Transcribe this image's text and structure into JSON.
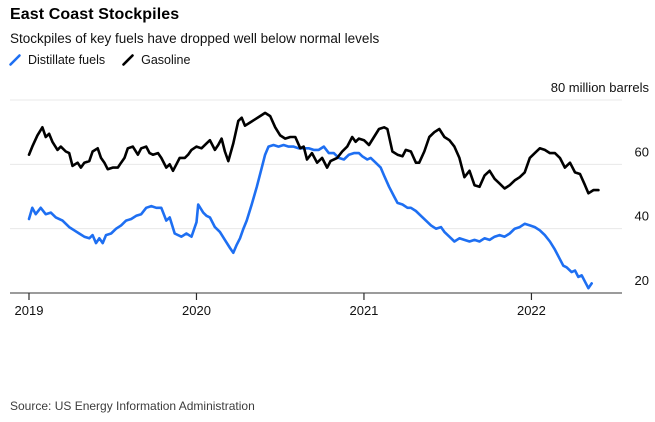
{
  "header": {
    "title": "East Coast Stockpiles",
    "subtitle": "Stockpiles of key fuels have dropped well below normal levels"
  },
  "legend": [
    {
      "label": "Distillate fuels",
      "color": "#1e6ff2"
    },
    {
      "label": "Gasoline",
      "color": "#000000"
    }
  ],
  "source": "Source: US Energy Information Administration",
  "colors": {
    "distillate": "#1e6ff2",
    "gasoline": "#000000",
    "gridline": "#e8e8e8",
    "axis": "#9b9b9b",
    "tick": "#2b2b2b",
    "label": "#111111"
  },
  "chart_data": {
    "type": "line",
    "title": "East Coast Stockpiles",
    "subtitle": "Stockpiles of key fuels have dropped well below normal levels",
    "unit_label": {
      "text": "80 million barrels",
      "value": 80
    },
    "xlim": [
      2018.8866,
      2022.5407
    ],
    "ylim": [
      20,
      80
    ],
    "grid": true,
    "legend_position": "top-left",
    "x_ticks": [
      {
        "value": 2019,
        "label": "2019"
      },
      {
        "value": 2020,
        "label": "2020"
      },
      {
        "value": 2021,
        "label": "2021"
      },
      {
        "value": 2022,
        "label": "2022"
      }
    ],
    "y_gridlines": [
      40,
      60,
      80
    ],
    "y_tick_labels": [
      {
        "value": 60,
        "label": "60"
      },
      {
        "value": 40,
        "label": "40"
      },
      {
        "value": 20,
        "label": "20"
      }
    ],
    "ylabel": "million barrels",
    "xlabel": "",
    "series": [
      {
        "name": "Distillate fuels",
        "color": "#1e6ff2",
        "points": [
          [
            2019.0,
            43
          ],
          [
            2019.02,
            46.5
          ],
          [
            2019.04,
            44.5
          ],
          [
            2019.07,
            46.5
          ],
          [
            2019.1,
            44.5
          ],
          [
            2019.13,
            45
          ],
          [
            2019.16,
            43.5
          ],
          [
            2019.2,
            42.5
          ],
          [
            2019.24,
            40.5
          ],
          [
            2019.27,
            39.5
          ],
          [
            2019.3,
            38.5
          ],
          [
            2019.33,
            37.5
          ],
          [
            2019.36,
            37
          ],
          [
            2019.38,
            38
          ],
          [
            2019.4,
            35.5
          ],
          [
            2019.42,
            37
          ],
          [
            2019.44,
            35.5
          ],
          [
            2019.46,
            38
          ],
          [
            2019.49,
            38.5
          ],
          [
            2019.52,
            40
          ],
          [
            2019.55,
            41
          ],
          [
            2019.58,
            42.5
          ],
          [
            2019.61,
            43
          ],
          [
            2019.64,
            44
          ],
          [
            2019.67,
            44.5
          ],
          [
            2019.7,
            46.5
          ],
          [
            2019.73,
            47
          ],
          [
            2019.76,
            46.5
          ],
          [
            2019.79,
            46.5
          ],
          [
            2019.82,
            42.5
          ],
          [
            2019.84,
            43.5
          ],
          [
            2019.87,
            38.5
          ],
          [
            2019.91,
            37.5
          ],
          [
            2019.94,
            38.5
          ],
          [
            2019.97,
            37.5
          ],
          [
            2020.0,
            42
          ],
          [
            2020.01,
            47.5
          ],
          [
            2020.04,
            45
          ],
          [
            2020.06,
            44
          ],
          [
            2020.08,
            43.5
          ],
          [
            2020.11,
            40.5
          ],
          [
            2020.14,
            39
          ],
          [
            2020.17,
            36.5
          ],
          [
            2020.2,
            34
          ],
          [
            2020.22,
            32.5
          ],
          [
            2020.24,
            35
          ],
          [
            2020.26,
            37
          ],
          [
            2020.28,
            40
          ],
          [
            2020.3,
            42.5
          ],
          [
            2020.33,
            47.5
          ],
          [
            2020.36,
            53
          ],
          [
            2020.39,
            59
          ],
          [
            2020.41,
            63
          ],
          [
            2020.43,
            65.5
          ],
          [
            2020.46,
            66
          ],
          [
            2020.49,
            65.5
          ],
          [
            2020.52,
            66
          ],
          [
            2020.55,
            65.5
          ],
          [
            2020.58,
            65.5
          ],
          [
            2020.61,
            65
          ],
          [
            2020.64,
            65
          ],
          [
            2020.67,
            65
          ],
          [
            2020.7,
            64.5
          ],
          [
            2020.73,
            64.5
          ],
          [
            2020.76,
            65.5
          ],
          [
            2020.79,
            63.5
          ],
          [
            2020.82,
            63.5
          ],
          [
            2020.85,
            62
          ],
          [
            2020.88,
            61.5
          ],
          [
            2020.91,
            63
          ],
          [
            2020.94,
            63.5
          ],
          [
            2020.97,
            63.5
          ],
          [
            2020.99,
            62.5
          ],
          [
            2021.02,
            61.5
          ],
          [
            2021.04,
            62
          ],
          [
            2021.07,
            60.5
          ],
          [
            2021.1,
            59
          ],
          [
            2021.12,
            56.5
          ],
          [
            2021.15,
            53
          ],
          [
            2021.18,
            50
          ],
          [
            2021.2,
            48
          ],
          [
            2021.23,
            47.5
          ],
          [
            2021.26,
            46.5
          ],
          [
            2021.28,
            46.5
          ],
          [
            2021.31,
            45.5
          ],
          [
            2021.34,
            44
          ],
          [
            2021.37,
            42.5
          ],
          [
            2021.4,
            41
          ],
          [
            2021.43,
            40
          ],
          [
            2021.46,
            40.5
          ],
          [
            2021.48,
            39
          ],
          [
            2021.51,
            37.5
          ],
          [
            2021.54,
            36
          ],
          [
            2021.57,
            37
          ],
          [
            2021.6,
            36.5
          ],
          [
            2021.63,
            36
          ],
          [
            2021.66,
            36.5
          ],
          [
            2021.69,
            36
          ],
          [
            2021.72,
            37
          ],
          [
            2021.75,
            36.5
          ],
          [
            2021.78,
            37.5
          ],
          [
            2021.81,
            38
          ],
          [
            2021.84,
            37.5
          ],
          [
            2021.87,
            38.5
          ],
          [
            2021.9,
            40
          ],
          [
            2021.93,
            40.5
          ],
          [
            2021.96,
            41.5
          ],
          [
            2021.99,
            41
          ],
          [
            2022.02,
            40.5
          ],
          [
            2022.05,
            39.5
          ],
          [
            2022.08,
            38
          ],
          [
            2022.11,
            36
          ],
          [
            2022.14,
            33.5
          ],
          [
            2022.17,
            30.5
          ],
          [
            2022.19,
            28.5
          ],
          [
            2022.21,
            28
          ],
          [
            2022.24,
            26.5
          ],
          [
            2022.26,
            27
          ],
          [
            2022.28,
            25
          ],
          [
            2022.3,
            25.5
          ],
          [
            2022.32,
            23.5
          ],
          [
            2022.34,
            21.5
          ],
          [
            2022.36,
            23
          ]
        ]
      },
      {
        "name": "Gasoline",
        "color": "#000000",
        "points": [
          [
            2019.0,
            63
          ],
          [
            2019.02,
            65.5
          ],
          [
            2019.05,
            69
          ],
          [
            2019.08,
            71.5
          ],
          [
            2019.1,
            68.5
          ],
          [
            2019.12,
            69.5
          ],
          [
            2019.14,
            67
          ],
          [
            2019.17,
            64.5
          ],
          [
            2019.19,
            65.5
          ],
          [
            2019.22,
            64
          ],
          [
            2019.24,
            63.5
          ],
          [
            2019.26,
            59.5
          ],
          [
            2019.29,
            60.5
          ],
          [
            2019.31,
            59
          ],
          [
            2019.33,
            60.5
          ],
          [
            2019.36,
            61
          ],
          [
            2019.38,
            64
          ],
          [
            2019.41,
            65
          ],
          [
            2019.43,
            62
          ],
          [
            2019.45,
            60.5
          ],
          [
            2019.47,
            58.5
          ],
          [
            2019.5,
            59
          ],
          [
            2019.53,
            59
          ],
          [
            2019.55,
            60.5
          ],
          [
            2019.57,
            62
          ],
          [
            2019.59,
            65
          ],
          [
            2019.62,
            65.5
          ],
          [
            2019.65,
            63
          ],
          [
            2019.67,
            65
          ],
          [
            2019.7,
            65.5
          ],
          [
            2019.72,
            63.5
          ],
          [
            2019.74,
            63
          ],
          [
            2019.77,
            63.5
          ],
          [
            2019.79,
            62
          ],
          [
            2019.82,
            59
          ],
          [
            2019.84,
            60
          ],
          [
            2019.86,
            58
          ],
          [
            2019.88,
            60
          ],
          [
            2019.9,
            62
          ],
          [
            2019.93,
            62
          ],
          [
            2019.95,
            63
          ],
          [
            2019.97,
            64.5
          ],
          [
            2020.0,
            65.5
          ],
          [
            2020.03,
            65
          ],
          [
            2020.06,
            66.5
          ],
          [
            2020.08,
            67.5
          ],
          [
            2020.11,
            64.5
          ],
          [
            2020.13,
            66
          ],
          [
            2020.15,
            68
          ],
          [
            2020.17,
            64
          ],
          [
            2020.19,
            61
          ],
          [
            2020.22,
            66.5
          ],
          [
            2020.25,
            73.5
          ],
          [
            2020.27,
            74.5
          ],
          [
            2020.29,
            72
          ],
          [
            2020.32,
            73
          ],
          [
            2020.35,
            74
          ],
          [
            2020.38,
            75
          ],
          [
            2020.41,
            76
          ],
          [
            2020.44,
            75
          ],
          [
            2020.47,
            71.5
          ],
          [
            2020.5,
            69
          ],
          [
            2020.53,
            68
          ],
          [
            2020.56,
            68.5
          ],
          [
            2020.59,
            68.5
          ],
          [
            2020.62,
            65
          ],
          [
            2020.64,
            65.5
          ],
          [
            2020.66,
            61.5
          ],
          [
            2020.69,
            63.5
          ],
          [
            2020.72,
            60.5
          ],
          [
            2020.75,
            62
          ],
          [
            2020.78,
            59
          ],
          [
            2020.8,
            61
          ],
          [
            2020.84,
            62
          ],
          [
            2020.87,
            64
          ],
          [
            2020.9,
            65.5
          ],
          [
            2020.93,
            68.5
          ],
          [
            2020.95,
            67
          ],
          [
            2020.97,
            68
          ],
          [
            2021.0,
            67.5
          ],
          [
            2021.03,
            66
          ],
          [
            2021.06,
            68.5
          ],
          [
            2021.09,
            71
          ],
          [
            2021.12,
            71.5
          ],
          [
            2021.14,
            71
          ],
          [
            2021.17,
            64
          ],
          [
            2021.2,
            63
          ],
          [
            2021.23,
            62.5
          ],
          [
            2021.25,
            64.5
          ],
          [
            2021.28,
            64
          ],
          [
            2021.31,
            60.5
          ],
          [
            2021.33,
            60.5
          ],
          [
            2021.36,
            64
          ],
          [
            2021.39,
            68.5
          ],
          [
            2021.42,
            70
          ],
          [
            2021.45,
            71
          ],
          [
            2021.48,
            68.5
          ],
          [
            2021.51,
            67.5
          ],
          [
            2021.54,
            65.5
          ],
          [
            2021.57,
            62
          ],
          [
            2021.6,
            56
          ],
          [
            2021.63,
            58
          ],
          [
            2021.66,
            53.5
          ],
          [
            2021.69,
            53
          ],
          [
            2021.72,
            56.5
          ],
          [
            2021.75,
            58
          ],
          [
            2021.78,
            55.5
          ],
          [
            2021.81,
            54
          ],
          [
            2021.84,
            52.5
          ],
          [
            2021.87,
            53.5
          ],
          [
            2021.9,
            55
          ],
          [
            2021.93,
            56
          ],
          [
            2021.96,
            57.5
          ],
          [
            2021.99,
            62
          ],
          [
            2022.02,
            63.5
          ],
          [
            2022.05,
            65
          ],
          [
            2022.08,
            64.5
          ],
          [
            2022.11,
            63.5
          ],
          [
            2022.14,
            63.5
          ],
          [
            2022.17,
            62
          ],
          [
            2022.2,
            59
          ],
          [
            2022.23,
            60.5
          ],
          [
            2022.26,
            57.5
          ],
          [
            2022.29,
            57
          ],
          [
            2022.32,
            53.5
          ],
          [
            2022.34,
            51
          ],
          [
            2022.37,
            52
          ],
          [
            2022.4,
            52
          ]
        ]
      }
    ]
  }
}
